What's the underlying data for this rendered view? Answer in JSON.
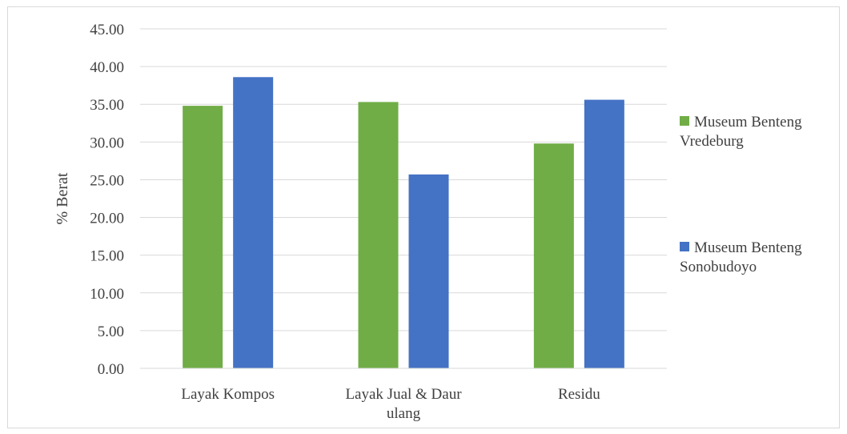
{
  "chart_data": {
    "type": "bar",
    "categories": [
      [
        "Layak Kompos"
      ],
      [
        "Layak Jual & Daur",
        "ulang"
      ],
      [
        "Residu"
      ]
    ],
    "series": [
      {
        "name": [
          "Museum Benteng",
          "Vredeburg"
        ],
        "color": "#70ad47",
        "values": [
          34.8,
          35.3,
          29.8
        ]
      },
      {
        "name": [
          "Museum Benteng",
          "Sonobudoyo"
        ],
        "color": "#4472c4",
        "values": [
          38.6,
          25.7,
          35.6
        ]
      }
    ],
    "title": "",
    "xlabel": "",
    "ylabel": "% Berat",
    "ylim": [
      0,
      45
    ],
    "ytick_step": 5,
    "ytick_labels": [
      "0.00",
      "5.00",
      "10.00",
      "15.00",
      "20.00",
      "25.00",
      "30.00",
      "35.00",
      "40.00",
      "45.00"
    ],
    "grid": true,
    "legend_position": "right"
  }
}
